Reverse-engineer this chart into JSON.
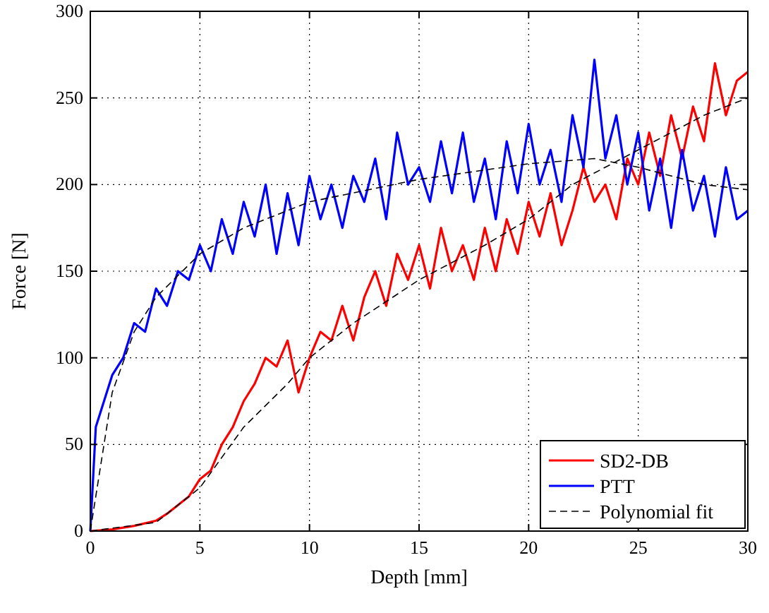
{
  "chart_data": {
    "type": "line",
    "xlabel": "Depth [mm]",
    "ylabel": "Force [N]",
    "xlim": [
      0,
      30
    ],
    "ylim": [
      0,
      300
    ],
    "xticks": [
      0,
      5,
      10,
      15,
      20,
      25,
      30
    ],
    "yticks": [
      0,
      50,
      100,
      150,
      200,
      250,
      300
    ],
    "grid": true,
    "legend": "bottom right",
    "series": [
      {
        "name": "SD2-DB",
        "color": "#ff0000",
        "x": [
          0,
          1,
          2,
          3,
          3.5,
          4,
          4.5,
          5,
          5.5,
          6,
          6.5,
          7,
          7.5,
          8,
          8.5,
          9,
          9.5,
          10,
          10.5,
          11,
          11.5,
          12,
          12.5,
          13,
          13.5,
          14,
          14.5,
          15,
          15.5,
          16,
          16.5,
          17,
          17.5,
          18,
          18.5,
          19,
          19.5,
          20,
          20.5,
          21,
          21.5,
          22,
          22.5,
          23,
          23.5,
          24,
          24.5,
          25,
          25.5,
          26,
          26.5,
          27,
          27.5,
          28,
          28.5,
          29,
          29.5,
          30
        ],
        "values": [
          0,
          1,
          3,
          6,
          10,
          15,
          20,
          30,
          35,
          50,
          60,
          75,
          85,
          100,
          95,
          110,
          80,
          100,
          115,
          110,
          130,
          110,
          135,
          150,
          130,
          160,
          145,
          165,
          140,
          175,
          150,
          165,
          145,
          175,
          150,
          180,
          160,
          190,
          170,
          195,
          165,
          185,
          210,
          190,
          200,
          180,
          215,
          200,
          230,
          205,
          240,
          215,
          245,
          225,
          270,
          240,
          260,
          265
        ]
      },
      {
        "name": "PTT",
        "color": "#0000ff",
        "x": [
          0,
          0.25,
          0.5,
          1,
          1.5,
          2,
          2.5,
          3,
          3.5,
          4,
          4.5,
          5,
          5.5,
          6,
          6.5,
          7,
          7.5,
          8,
          8.5,
          9,
          9.5,
          10,
          10.5,
          11,
          11.5,
          12,
          12.5,
          13,
          13.5,
          14,
          14.5,
          15,
          15.5,
          16,
          16.5,
          17,
          17.5,
          18,
          18.5,
          19,
          19.5,
          20,
          20.5,
          21,
          21.5,
          22,
          22.5,
          23,
          23.5,
          24,
          24.5,
          25,
          25.5,
          26,
          26.5,
          27,
          27.5,
          28,
          28.5,
          29,
          29.5,
          30
        ],
        "values": [
          0,
          60,
          70,
          90,
          100,
          120,
          115,
          140,
          130,
          150,
          145,
          165,
          150,
          180,
          160,
          190,
          170,
          200,
          160,
          195,
          165,
          205,
          180,
          200,
          175,
          205,
          190,
          215,
          180,
          230,
          200,
          210,
          190,
          225,
          195,
          230,
          190,
          215,
          180,
          225,
          195,
          235,
          200,
          220,
          190,
          240,
          210,
          272,
          215,
          240,
          200,
          230,
          185,
          215,
          175,
          220,
          185,
          205,
          170,
          210,
          180,
          185
        ]
      },
      {
        "name": "Polynomial fit",
        "color": "#000000",
        "line_style": "dashed",
        "x": [
          0,
          1,
          2,
          3,
          5,
          7,
          10,
          15,
          20,
          23,
          25,
          28,
          30
        ],
        "values": [
          0,
          80,
          115,
          135,
          160,
          175,
          190,
          203,
          212,
          215,
          210,
          200,
          197
        ]
      },
      {
        "color": "#000000",
        "line_style": "dashed",
        "x": [
          0,
          3,
          5,
          7,
          9,
          10,
          12,
          15,
          18,
          20,
          22,
          25,
          28,
          30
        ],
        "values": [
          0,
          5,
          25,
          60,
          85,
          100,
          120,
          145,
          165,
          180,
          200,
          220,
          240,
          250
        ]
      }
    ]
  }
}
